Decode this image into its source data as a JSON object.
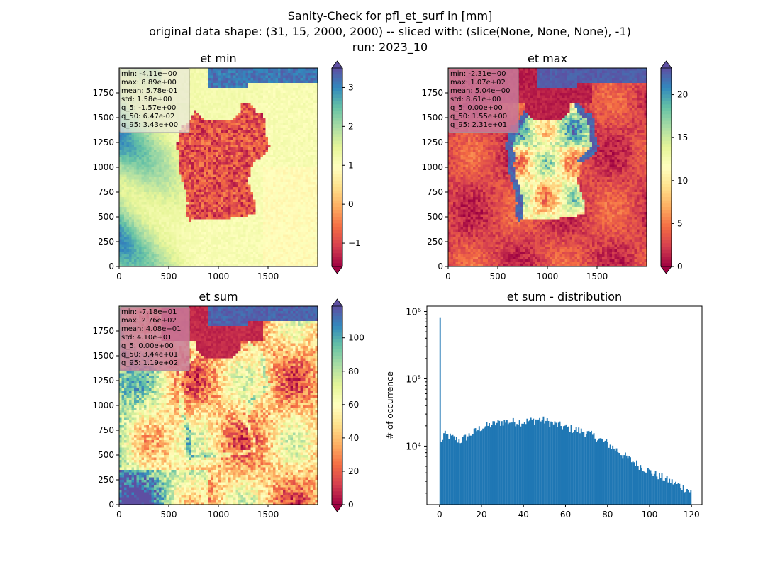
{
  "figure": {
    "title_lines": [
      "Sanity-Check for pfl_et_surf in [mm]",
      "original data shape: (31, 15, 2000, 2000) -- sliced with: (slice(None, None, None), -1)",
      "run: 2023_10"
    ]
  },
  "colors": {
    "sea_high": "#fdfdbf",
    "land_low": "#9e0142",
    "colormap": "Spectral",
    "histogram_bar": "#1f77b4"
  },
  "chart_data": [
    {
      "type": "heatmap",
      "title": "et min",
      "xlim": [
        0,
        2000
      ],
      "ylim": [
        0,
        2000
      ],
      "xticks": [
        "0",
        "500",
        "1000",
        "1500"
      ],
      "yticks": [
        "0",
        "250",
        "500",
        "750",
        "1000",
        "1250",
        "1500",
        "1750"
      ],
      "colorbar": {
        "min": -1.6,
        "max": 3.5,
        "ticks": [
          "−1",
          "0",
          "1",
          "2",
          "3"
        ],
        "tick_values": [
          -1,
          0,
          1,
          2,
          3
        ],
        "extend": "both",
        "colormap": "Spectral"
      },
      "stats": [
        "min: -4.11e+00",
        "max: 8.89e+00",
        "mean: 5.78e-01",
        "std: 1.58e+00",
        "q_5: -1.57e+00",
        "q_50: 6.47e-02",
        "q_95: 3.43e+00"
      ]
    },
    {
      "type": "heatmap",
      "title": "et max",
      "xlim": [
        0,
        2000
      ],
      "ylim": [
        0,
        2000
      ],
      "xticks": [
        "0",
        "500",
        "1000",
        "1500"
      ],
      "yticks": [
        "0",
        "250",
        "500",
        "750",
        "1000",
        "1250",
        "1500",
        "1750"
      ],
      "colorbar": {
        "min": 0,
        "max": 23.1,
        "ticks": [
          "0",
          "5",
          "10",
          "15",
          "20"
        ],
        "tick_values": [
          0,
          5,
          10,
          15,
          20
        ],
        "extend": "both",
        "colormap": "Spectral"
      },
      "stats": [
        "min: -2.31e+00",
        "max: 1.07e+02",
        "mean: 5.04e+00",
        "std: 8.61e+00",
        "q_5: 0.00e+00",
        "q_50: 1.55e+00",
        "q_95: 2.31e+01"
      ]
    },
    {
      "type": "heatmap",
      "title": "et sum",
      "xlim": [
        0,
        2000
      ],
      "ylim": [
        0,
        2000
      ],
      "xticks": [
        "0",
        "500",
        "1000",
        "1500"
      ],
      "yticks": [
        "0",
        "250",
        "500",
        "750",
        "1000",
        "1250",
        "1500",
        "1750"
      ],
      "colorbar": {
        "min": 0,
        "max": 119,
        "ticks": [
          "0",
          "20",
          "40",
          "60",
          "80",
          "100"
        ],
        "tick_values": [
          0,
          20,
          40,
          60,
          80,
          100
        ],
        "extend": "both",
        "colormap": "Spectral"
      },
      "stats": [
        "min: -7.18e+01",
        "max: 2.76e+02",
        "mean: 4.08e+01",
        "std: 4.10e+01",
        "q_5: 0.00e+00",
        "q_50: 3.44e+01",
        "q_95: 1.19e+02"
      ]
    },
    {
      "type": "bar",
      "title": "et sum - distribution",
      "ylabel": "# of occurrence",
      "yscale": "log",
      "xlim": [
        -6,
        125
      ],
      "ylim": [
        1350,
        1200000
      ],
      "xticks": [
        "0",
        "20",
        "40",
        "60",
        "80",
        "100",
        "120"
      ],
      "xtick_values": [
        0,
        20,
        40,
        60,
        80,
        100,
        120
      ],
      "yticks": [
        "10⁴",
        "10⁵",
        "10⁶"
      ],
      "ytick_values": [
        10000,
        100000,
        1000000
      ],
      "bin_width": 0.6,
      "peak": {
        "x": 0,
        "y": 820000
      },
      "profile": [
        [
          0.3,
          9500
        ],
        [
          2,
          15000
        ],
        [
          10,
          12000
        ],
        [
          20,
          19000
        ],
        [
          30,
          23000
        ],
        [
          40,
          23000
        ],
        [
          48,
          25000
        ],
        [
          60,
          19000
        ],
        [
          70,
          16000
        ],
        [
          80,
          11000
        ],
        [
          90,
          6500
        ],
        [
          100,
          4200
        ],
        [
          110,
          3000
        ],
        [
          118,
          2300
        ],
        [
          119.5,
          2100
        ]
      ]
    }
  ]
}
